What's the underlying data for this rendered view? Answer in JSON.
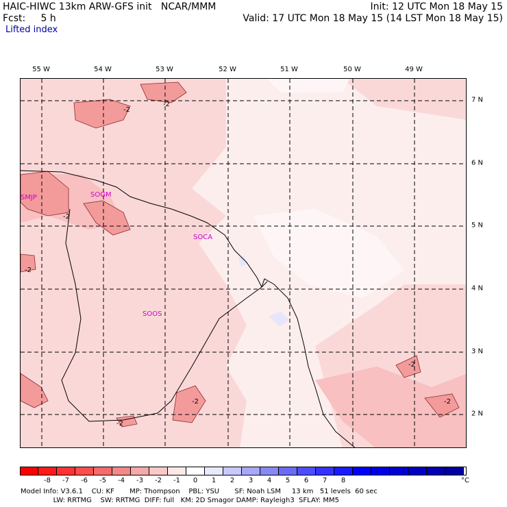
{
  "header": {
    "model_line": "HAIC-HIWC 13km ARW-GFS init   NCAR/MMM",
    "init_line": "Init: 12 UTC Mon 18 May 15",
    "fcst_label": "Fcst:     5 h",
    "valid_line": "Valid: 17 UTC Mon 18 May 15 (14 LST Mon 18 May 15)",
    "field_name": "Lifted index"
  },
  "map": {
    "lon_labels": [
      "55 W",
      "54 W",
      "53 W",
      "52 W",
      "51 W",
      "50 W",
      "49 W"
    ],
    "lat_labels": [
      "7 N",
      "6 N",
      "5 N",
      "4 N",
      "3 N",
      "2 N"
    ],
    "stations": [
      "SMJP",
      "SOGM",
      "SOCA",
      "SOOS"
    ],
    "contour_labels": [
      "-2",
      "-2",
      "-2",
      "-2",
      "-2",
      "-2",
      "-2",
      "-2"
    ],
    "colors": {
      "light_pink": "#fbd8d8",
      "mid_pink": "#f8c0c0",
      "dark_pink": "#f39b9b",
      "near_white": "#fdeeee",
      "light_blue": "#e6e6fb",
      "coast": "#000000"
    }
  },
  "colorbar": {
    "ticks": [
      "-8",
      "-7",
      "-6",
      "-5",
      "-4",
      "-3",
      "-2",
      "-1",
      "0",
      "1",
      "2",
      "3",
      "4",
      "5",
      "6",
      "7",
      "8"
    ],
    "unit": "°C",
    "colors": [
      "#ff0000",
      "#ff1a1a",
      "#ff3333",
      "#ff4d4d",
      "#f76a6a",
      "#f38888",
      "#f7a8a8",
      "#fbc8c8",
      "#fde8e8",
      "#ffffff",
      "#e8e8ff",
      "#c8c8fc",
      "#a8a8f8",
      "#8888f3",
      "#6a6af7",
      "#4d4dff",
      "#3333ff",
      "#1a1aff",
      "#0000ff",
      "#0000e6",
      "#0000d0",
      "#0000c0",
      "#0000b0",
      "#0000a0"
    ]
  },
  "footer": {
    "line1": "Model Info: V3.6.1    CU: KF       MP: Thompson    PBL: YSU       SF: Noah LSM     13 km   51 levels  60 sec",
    "line2": "               LW: RRTMG    SW: RRTMG  DIFF: full   KM: 2D Smagor DAMP: Rayleigh3  SFLAY: MM5"
  }
}
